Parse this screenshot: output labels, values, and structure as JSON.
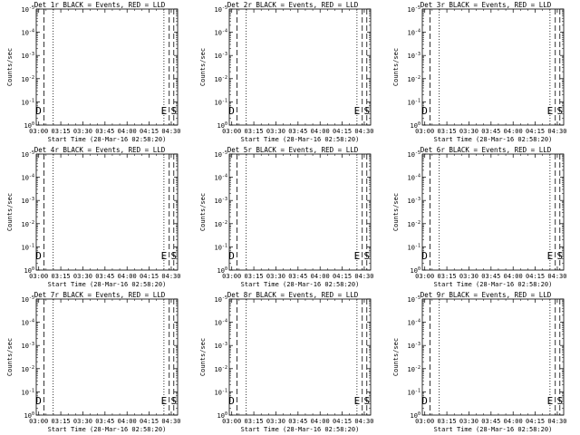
{
  "panel_count": 9,
  "chart_data": [
    {
      "type": "line",
      "title": "Det 1r BLACK = Events, RED = LLD",
      "xlabel": "Start Time (28-Mar-16 02:58:20)",
      "ylabel": "Counts/sec",
      "x_tick_labels": [
        "03:00",
        "03:15",
        "03:30",
        "03:45",
        "04:00",
        "04:15",
        "04:30"
      ],
      "x_range_minutes": [
        0,
        96
      ],
      "y_scale": "log",
      "y_tick_labels": [
        "10^0",
        "10^-1",
        "10^-2",
        "10^-3",
        "10^-4",
        "10^-5"
      ],
      "dotted_markers_minutes": [
        11.5,
        86.7
      ],
      "dashed_markers_minutes": [
        5.2,
        90.3,
        93.4
      ],
      "marker_labels": [
        {
          "text": "D",
          "at_minutes": 1.6
        },
        {
          "text": "E",
          "at_minutes": 86.7
        },
        {
          "text": "S",
          "at_minutes": 93.4
        }
      ],
      "series": [
        {
          "values": []
        },
        {
          "values": []
        }
      ],
      "grid": false
    },
    {
      "type": "line",
      "title": "Det 2r BLACK = Events, RED = LLD",
      "xlabel": "Start Time (28-Mar-16 02:58:20)",
      "ylabel": "Counts/sec",
      "x_tick_labels": [
        "03:00",
        "03:15",
        "03:30",
        "03:45",
        "04:00",
        "04:15",
        "04:30"
      ],
      "x_range_minutes": [
        0,
        96
      ],
      "y_scale": "log",
      "y_tick_labels": [
        "10^0",
        "10^-1",
        "10^-2",
        "10^-3",
        "10^-4",
        "10^-5"
      ],
      "dotted_markers_minutes": [
        11.5,
        86.7
      ],
      "dashed_markers_minutes": [
        5.2,
        90.3,
        93.4
      ],
      "marker_labels": [
        {
          "text": "D",
          "at_minutes": 1.6
        },
        {
          "text": "E",
          "at_minutes": 86.7
        },
        {
          "text": "S",
          "at_minutes": 93.4
        }
      ],
      "series": [
        {
          "values": []
        },
        {
          "values": []
        }
      ],
      "grid": false
    },
    {
      "type": "line",
      "title": "Det 3r BLACK = Events, RED = LLD",
      "xlabel": "Start Time (28-Mar-16 02:58:20)",
      "ylabel": "Counts/sec",
      "x_tick_labels": [
        "03:00",
        "03:15",
        "03:30",
        "03:45",
        "04:00",
        "04:15",
        "04:30"
      ],
      "x_range_minutes": [
        0,
        96
      ],
      "y_scale": "log",
      "y_tick_labels": [
        "10^0",
        "10^-1",
        "10^-2",
        "10^-3",
        "10^-4",
        "10^-5"
      ],
      "dotted_markers_minutes": [
        11.5,
        86.7
      ],
      "dashed_markers_minutes": [
        5.2,
        90.3,
        93.4
      ],
      "marker_labels": [
        {
          "text": "D",
          "at_minutes": 1.6
        },
        {
          "text": "E",
          "at_minutes": 86.7
        },
        {
          "text": "S",
          "at_minutes": 93.4
        }
      ],
      "series": [
        {
          "values": []
        },
        {
          "values": []
        }
      ],
      "grid": false
    },
    {
      "type": "line",
      "title": "Det 4r BLACK = Events, RED = LLD",
      "xlabel": "Start Time (28-Mar-16 02:58:20)",
      "ylabel": "Counts/sec",
      "x_tick_labels": [
        "03:00",
        "03:15",
        "03:30",
        "03:45",
        "04:00",
        "04:15",
        "04:30"
      ],
      "x_range_minutes": [
        0,
        96
      ],
      "y_scale": "log",
      "y_tick_labels": [
        "10^0",
        "10^-1",
        "10^-2",
        "10^-3",
        "10^-4",
        "10^-5"
      ],
      "dotted_markers_minutes": [
        11.5,
        86.7
      ],
      "dashed_markers_minutes": [
        5.2,
        90.3,
        93.4
      ],
      "marker_labels": [
        {
          "text": "D",
          "at_minutes": 1.6
        },
        {
          "text": "E",
          "at_minutes": 86.7
        },
        {
          "text": "S",
          "at_minutes": 93.4
        }
      ],
      "series": [
        {
          "values": []
        },
        {
          "values": []
        }
      ],
      "grid": false
    },
    {
      "type": "line",
      "title": "Det 5r BLACK = Events, RED = LLD",
      "xlabel": "Start Time (28-Mar-16 02:58:20)",
      "ylabel": "Counts/sec",
      "x_tick_labels": [
        "03:00",
        "03:15",
        "03:30",
        "03:45",
        "04:00",
        "04:15",
        "04:30"
      ],
      "x_range_minutes": [
        0,
        96
      ],
      "y_scale": "log",
      "y_tick_labels": [
        "10^0",
        "10^-1",
        "10^-2",
        "10^-3",
        "10^-4",
        "10^-5"
      ],
      "dotted_markers_minutes": [
        11.5,
        86.7
      ],
      "dashed_markers_minutes": [
        5.2,
        90.3,
        93.4
      ],
      "marker_labels": [
        {
          "text": "D",
          "at_minutes": 1.6
        },
        {
          "text": "E",
          "at_minutes": 86.7
        },
        {
          "text": "S",
          "at_minutes": 93.4
        }
      ],
      "series": [
        {
          "values": []
        },
        {
          "values": []
        }
      ],
      "grid": false
    },
    {
      "type": "line",
      "title": "Det 6r BLACK = Events, RED = LLD",
      "xlabel": "Start Time (28-Mar-16 02:58:20)",
      "ylabel": "Counts/sec",
      "x_tick_labels": [
        "03:00",
        "03:15",
        "03:30",
        "03:45",
        "04:00",
        "04:15",
        "04:30"
      ],
      "x_range_minutes": [
        0,
        96
      ],
      "y_scale": "log",
      "y_tick_labels": [
        "10^0",
        "10^-1",
        "10^-2",
        "10^-3",
        "10^-4",
        "10^-5"
      ],
      "dotted_markers_minutes": [
        11.5,
        86.7
      ],
      "dashed_markers_minutes": [
        5.2,
        90.3,
        93.4
      ],
      "marker_labels": [
        {
          "text": "D",
          "at_minutes": 1.6
        },
        {
          "text": "E",
          "at_minutes": 86.7
        },
        {
          "text": "S",
          "at_minutes": 93.4
        }
      ],
      "series": [
        {
          "values": []
        },
        {
          "values": []
        }
      ],
      "grid": false
    },
    {
      "type": "line",
      "title": "Det 7r BLACK = Events, RED = LLD",
      "xlabel": "Start Time (28-Mar-16 02:58:20)",
      "ylabel": "Counts/sec",
      "x_tick_labels": [
        "03:00",
        "03:15",
        "03:30",
        "03:45",
        "04:00",
        "04:15",
        "04:30"
      ],
      "x_range_minutes": [
        0,
        96
      ],
      "y_scale": "log",
      "y_tick_labels": [
        "10^0",
        "10^-1",
        "10^-2",
        "10^-3",
        "10^-4",
        "10^-5"
      ],
      "dotted_markers_minutes": [
        11.5,
        86.7
      ],
      "dashed_markers_minutes": [
        5.2,
        90.3,
        93.4
      ],
      "marker_labels": [
        {
          "text": "D",
          "at_minutes": 1.6
        },
        {
          "text": "E",
          "at_minutes": 86.7
        },
        {
          "text": "S",
          "at_minutes": 93.4
        }
      ],
      "series": [
        {
          "values": []
        },
        {
          "values": []
        }
      ],
      "grid": false
    },
    {
      "type": "line",
      "title": "Det 8r BLACK = Events, RED = LLD",
      "xlabel": "Start Time (28-Mar-16 02:58:20)",
      "ylabel": "Counts/sec",
      "x_tick_labels": [
        "03:00",
        "03:15",
        "03:30",
        "03:45",
        "04:00",
        "04:15",
        "04:30"
      ],
      "x_range_minutes": [
        0,
        96
      ],
      "y_scale": "log",
      "y_tick_labels": [
        "10^0",
        "10^-1",
        "10^-2",
        "10^-3",
        "10^-4",
        "10^-5"
      ],
      "dotted_markers_minutes": [
        11.5,
        86.7
      ],
      "dashed_markers_minutes": [
        5.2,
        90.3,
        93.4
      ],
      "marker_labels": [
        {
          "text": "D",
          "at_minutes": 1.6
        },
        {
          "text": "E",
          "at_minutes": 86.7
        },
        {
          "text": "S",
          "at_minutes": 93.4
        }
      ],
      "series": [
        {
          "values": []
        },
        {
          "values": []
        }
      ],
      "grid": false
    },
    {
      "type": "line",
      "title": "Det 9r BLACK = Events, RED = LLD",
      "xlabel": "Start Time (28-Mar-16 02:58:20)",
      "ylabel": "Counts/sec",
      "x_tick_labels": [
        "03:00",
        "03:15",
        "03:30",
        "03:45",
        "04:00",
        "04:15",
        "04:30"
      ],
      "x_range_minutes": [
        0,
        96
      ],
      "y_scale": "log",
      "y_tick_labels": [
        "10^0",
        "10^-1",
        "10^-2",
        "10^-3",
        "10^-4",
        "10^-5"
      ],
      "dotted_markers_minutes": [
        11.5,
        86.7
      ],
      "dashed_markers_minutes": [
        5.2,
        90.3,
        93.4
      ],
      "marker_labels": [
        {
          "text": "D",
          "at_minutes": 1.6
        },
        {
          "text": "E",
          "at_minutes": 86.7
        },
        {
          "text": "S",
          "at_minutes": 93.4
        }
      ],
      "series": [
        {
          "values": []
        },
        {
          "values": []
        }
      ],
      "grid": false
    }
  ]
}
